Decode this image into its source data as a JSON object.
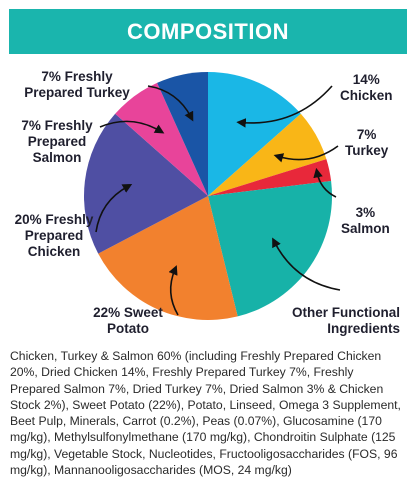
{
  "header": {
    "title": "COMPOSITION"
  },
  "chart_data": {
    "type": "pie",
    "title": "COMPOSITION",
    "slices": [
      {
        "label": "14%\nChicken",
        "value": 14,
        "color": "#1ab7e6"
      },
      {
        "label": "7%\nTurkey",
        "value": 7,
        "color": "#f9b617"
      },
      {
        "label": "3%\nSalmon",
        "value": 3,
        "color": "#e8283a"
      },
      {
        "label": "Other Functional\nIngredients",
        "value": 24,
        "color": "#17b2a8"
      },
      {
        "label": "22% Sweet\nPotato",
        "value": 22,
        "color": "#f2812e"
      },
      {
        "label": "20% Freshly\nPrepared\nChicken",
        "value": 20,
        "color": "#4f4fa3"
      },
      {
        "label": "7% Freshly\nPrepared\nSalmon",
        "value": 7,
        "color": "#e8449a"
      },
      {
        "label": "7% Freshly\nPrepared Turkey",
        "value": 7,
        "color": "#1a55a6"
      }
    ]
  },
  "description": "Chicken, Turkey & Salmon 60% (including Freshly Prepared Chicken 20%, Dried Chicken 14%, Freshly Prepared Turkey 7%, Freshly Prepared Salmon 7%, Dried Turkey 7%, Dried Salmon 3% & Chicken Stock 2%), Sweet Potato (22%), Potato, Linseed, Omega 3 Supplement, Beet Pulp, Minerals, Carrot (0.2%), Peas (0.07%), Glucosamine (170 mg/kg), Methylsulfonylmethane (170 mg/kg), Chondroitin Sulphate (125 mg/kg), Vegetable Stock, Nucleotides, Fructooligosaccharides (FOS, 96 mg/kg),  Mannanooligosaccharides (MOS, 24 mg/kg)"
}
